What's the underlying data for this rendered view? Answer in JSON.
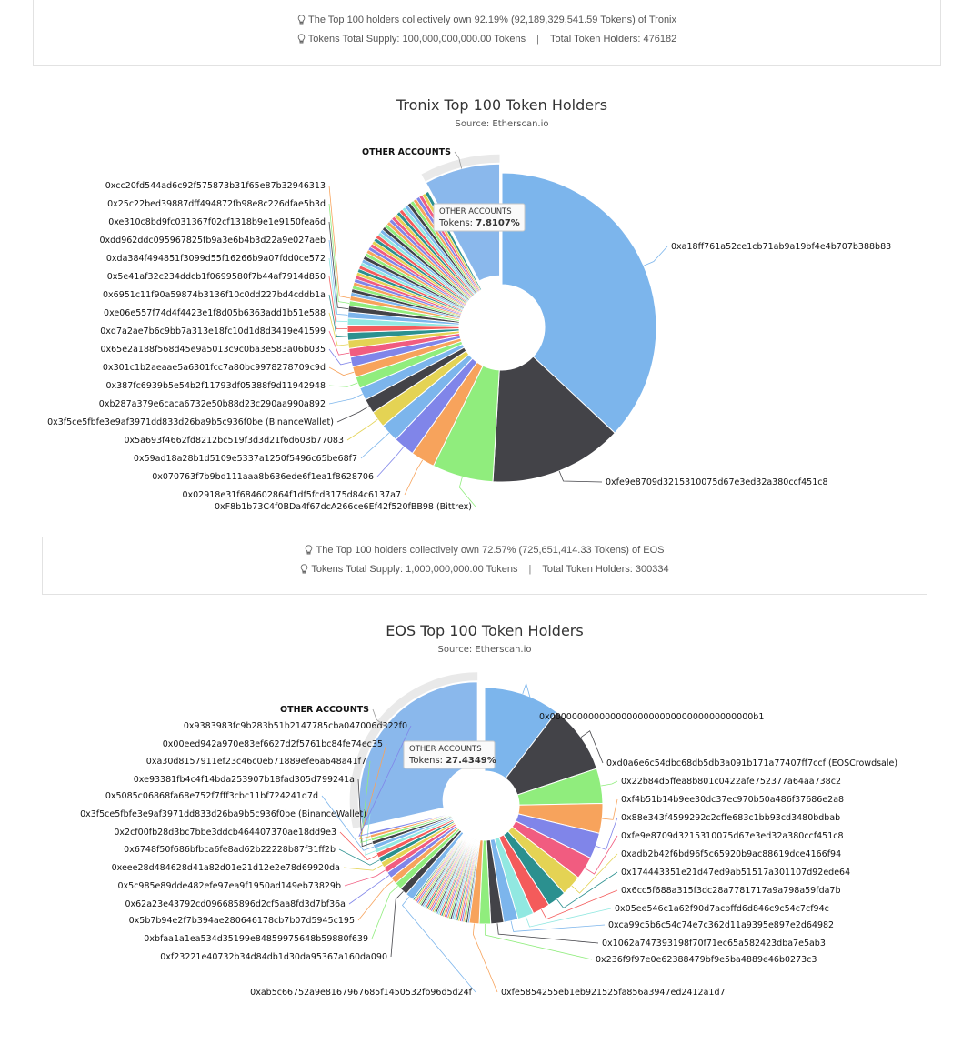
{
  "summary_tronix": {
    "line1": "The Top 100 holders collectively own 92.19% (92,189,329,541.59 Tokens) of Tronix",
    "supply": "Tokens Total Supply: 100,000,000,000.00 Tokens",
    "sep": "|",
    "holders": "Total Token Holders: 476182"
  },
  "summary_eos": {
    "line1": "The Top 100 holders collectively own 72.57% (725,651,414.33 Tokens) of EOS",
    "supply": "Tokens Total Supply: 1,000,000,000.00 Tokens",
    "sep": "|",
    "holders": "Total Token Holders: 300334"
  },
  "icons": {
    "info": "lightbulb-icon"
  },
  "colors": {
    "other": "#8ab8ec",
    "blue": "#7cb5ec",
    "dark": "#434348",
    "green": "#90ed7d",
    "orange": "#f7a35c",
    "purple": "#8085e9",
    "pink": "#f15c80",
    "gold": "#e4d354",
    "teal": "#2b908f",
    "red": "#f45b5b",
    "cyan": "#91e8e1"
  },
  "chart_data": [
    {
      "type": "pie",
      "title": "Tronix Top 100 Token Holders",
      "subtitle": "Source: Etherscan.io",
      "tooltip": {
        "name": "OTHER ACCOUNTS",
        "label": "Tokens:",
        "value": "7.8107%"
      },
      "slices": [
        {
          "name": "0xa18ff761a52ce1cb71ab9a19bf4e4b707b388b83",
          "value": 36.5,
          "color": "#7cb5ec"
        },
        {
          "name": "0xfe9e8709d3215310075d67e3ed32a380ccf451c8",
          "value": 13.8,
          "color": "#434348"
        },
        {
          "name": "0xF8b1b73C4f0BDa4f67dcA266ce6Ef42f520fBB98 (Bittrex)",
          "value": 6.3,
          "color": "#90ed7d"
        },
        {
          "name": "0x02918e31f684602864f1df5fcd3175d84c6137a7",
          "value": 2.5,
          "color": "#f7a35c"
        },
        {
          "name": "0x070763f7b9bd111aaa8b636ede6f1ea1f8628706",
          "value": 2.2,
          "color": "#8085e9"
        },
        {
          "name": "0x59ad18a28b1d5109e5337a1250f5496c65be68f7",
          "value": 1.9,
          "color": "#7cb5ec"
        },
        {
          "name": "0x5a693f4662fd8212bc519f3d3d21f6d603b77083",
          "value": 1.7,
          "color": "#e4d354"
        },
        {
          "name": "0x3f5ce5fbfe3e9af3971dd833d26ba9b5c936f0be (BinanceWallet)",
          "value": 1.5,
          "color": "#434348"
        },
        {
          "name": "0xb287a379e6caca6732e50b88d23c290aa990a892",
          "value": 1.3,
          "color": "#7cb5ec"
        },
        {
          "name": "0x387fc6939b5e54b2f11793df05388f9d11942948",
          "value": 1.2,
          "color": "#90ed7d"
        },
        {
          "name": "0x301c1b2aeaae5a6301fcc7a80bc9978278709c9d",
          "value": 1.1,
          "color": "#f7a35c"
        },
        {
          "name": "0x65e2a188f568d45e9a5013c9c0ba3e583a06b035",
          "value": 1.0,
          "color": "#8085e9"
        },
        {
          "name": "0xd7a2ae7b6c9bb7a313e18fc10d1d8d3419e41599",
          "value": 0.9,
          "color": "#f15c80"
        },
        {
          "name": "0xe06e557f74d4f4423e1f8d05b6363add1b51e588",
          "value": 0.85,
          "color": "#e4d354"
        },
        {
          "name": "0x6951c11f90a59874b3136f10c0dd227bd4cddb1a",
          "value": 0.8,
          "color": "#2b908f"
        },
        {
          "name": "0x5e41af32c234ddcb1f0699580f7b44af7914d850",
          "value": 0.75,
          "color": "#f45b5b"
        },
        {
          "name": "0xda384f494851f3099d55f16266b9a07fdd0ce572",
          "value": 0.7,
          "color": "#91e8e1"
        },
        {
          "name": "0xdd962ddc095967825fb9a3e6b4b3d22a9e027aeb",
          "value": 0.65,
          "color": "#7cb5ec"
        },
        {
          "name": "0xe310c8bd9fc031367f02cf1318b9e1e9150fea6d",
          "value": 0.6,
          "color": "#434348"
        },
        {
          "name": "0x25c22bed39887dff494872fb98e8c226dfae5b3d",
          "value": 0.55,
          "color": "#90ed7d"
        },
        {
          "name": "0xcc20fd544ad6c92f575873b31f65e87b32946313",
          "value": 0.5,
          "color": "#f7a35c"
        },
        {
          "name": "",
          "value": 13.64,
          "color": "#8085e9",
          "unlabeled": true
        },
        {
          "name": "OTHER ACCOUNTS",
          "value": 7.8107,
          "color": "#8ab8ec",
          "exploded": true
        }
      ]
    },
    {
      "type": "pie",
      "title": "EOS Top 100 Token Holders",
      "subtitle": "Source: Etherscan.io",
      "tooltip": {
        "name": "OTHER ACCOUNTS",
        "label": "Tokens:",
        "value": "27.4349%"
      },
      "slices": [
        {
          "name": "0x0000000000000000000000000000000000000b1",
          "value": 10.0,
          "color": "#7cb5ec"
        },
        {
          "name": "0xd0a6e6c54dbc68db5db3a091b171a77407ff7ccf (EOSCrowdsale)",
          "value": 9.1,
          "color": "#434348"
        },
        {
          "name": "0x22b84d5ffea8b801c0422afe752377a64aa738c2",
          "value": 4.6,
          "color": "#90ed7d"
        },
        {
          "name": "0xf4b51b14b9ee30dc37ec970b50a486f37686e2a8",
          "value": 3.9,
          "color": "#f7a35c"
        },
        {
          "name": "0x88e343f4599292c2cffe683c1bb93cd3480bdbab",
          "value": 3.4,
          "color": "#8085e9"
        },
        {
          "name": "0xfe9e8709d3215310075d67e3ed32a380ccf451c8",
          "value": 3.0,
          "color": "#f15c80"
        },
        {
          "name": "0xadb2b42f6bd96f5c65920b9ac88619dce4166f94",
          "value": 2.7,
          "color": "#e4d354"
        },
        {
          "name": "0x174443351e21d47ed9ab51517a301107d92ede64",
          "value": 2.5,
          "color": "#2b908f"
        },
        {
          "name": "0x6cc5f688a315f3dc28a7781717a9a798a59fda7b",
          "value": 2.3,
          "color": "#f45b5b"
        },
        {
          "name": "0x05ee546c1a62f90d7acbffd6d846c9c54c7cf94c",
          "value": 2.1,
          "color": "#91e8e1"
        },
        {
          "name": "0xca99c5b6c54c74e7c362d11a9395e897e2d64982",
          "value": 1.9,
          "color": "#7cb5ec"
        },
        {
          "name": "0x1062a747393198f70f71ec65a582423dba7e5ab3",
          "value": 1.7,
          "color": "#434348"
        },
        {
          "name": "0x236f9f97e0e62388479bf9e5ba4889e46b0273c3",
          "value": 1.5,
          "color": "#90ed7d"
        },
        {
          "name": "0xfe5854255eb1eb921525fa856a3947ed2412a1d7",
          "value": 1.3,
          "color": "#f7a35c"
        },
        {
          "name": "",
          "value": 8.0,
          "color": "#8085e9",
          "unlabeled": true
        },
        {
          "name": "0xab5c66752a9e8167967685f1450532fb96d5d24f",
          "value": 1.1,
          "color": "#7cb5ec"
        },
        {
          "name": "0xf23221e40732b34d84db1d30da95367a160da090",
          "value": 1.0,
          "color": "#434348"
        },
        {
          "name": "0xbfaa1a1ea534d35199e84859975648b59880f639",
          "value": 0.95,
          "color": "#90ed7d"
        },
        {
          "name": "0x5b7b94e2f7b394ae280646178cb7b07d5945c195",
          "value": 0.9,
          "color": "#f7a35c"
        },
        {
          "name": "0x62a23e43792cd096685896d2cf5aa8fd3d7bf36a",
          "value": 0.85,
          "color": "#8085e9"
        },
        {
          "name": "0x5c985e89dde482efe97ea9f1950ad149eb73829b",
          "value": 0.8,
          "color": "#f15c80"
        },
        {
          "name": "0xeee28d484628d41a82d01e21d12e2e78d69920da",
          "value": 0.75,
          "color": "#e4d354"
        },
        {
          "name": "0x6748f50f686bfbca6fe8ad62b22228b87f31ff2b",
          "value": 0.7,
          "color": "#2b908f"
        },
        {
          "name": "0x2cf00fb28d3bc7bbe3ddcb464407370ae18dd9e3",
          "value": 0.65,
          "color": "#f45b5b"
        },
        {
          "name": "0x3f5ce5fbfe3e9af3971dd833d26ba9b5c936f0be (BinanceWallet)",
          "value": 0.6,
          "color": "#91e8e1"
        },
        {
          "name": "0x5085c06868fa68e752f7fff3cbc11bf724241d7d",
          "value": 0.55,
          "color": "#7cb5ec"
        },
        {
          "name": "0xe93381fb4c4f14bda253907b18fad305d799241a",
          "value": 0.5,
          "color": "#434348"
        },
        {
          "name": "0xa30d8157911ef23c46c0eb71889efe6a648a41f7",
          "value": 0.45,
          "color": "#90ed7d"
        },
        {
          "name": "0x00eed942a970e83ef6627d2f5761bc84fe74ec35",
          "value": 0.4,
          "color": "#f7a35c"
        },
        {
          "name": "0x9383983fc9b283b51b2147785cba047006d322f0",
          "value": 0.35,
          "color": "#8085e9"
        },
        {
          "name": "OTHER ACCOUNTS",
          "value": 27.4349,
          "color": "#8ab8ec",
          "exploded": true
        }
      ]
    }
  ]
}
